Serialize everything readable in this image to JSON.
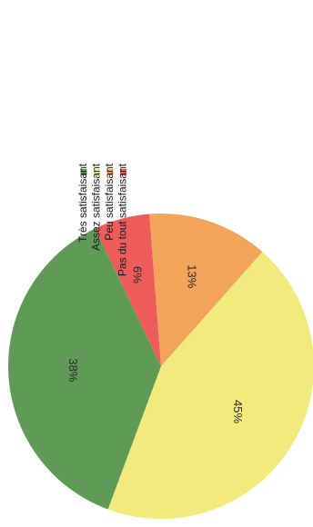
{
  "chart_data": {
    "type": "pie",
    "slices": [
      {
        "label": "Très satisfaisant",
        "value": 38,
        "display": "38%",
        "color": "#5f9a57"
      },
      {
        "label": "Assez satisfaisant",
        "value": 45,
        "display": "45%",
        "color": "#f2ea7c"
      },
      {
        "label": "Peu satisfaisant",
        "value": 13,
        "display": "13%",
        "color": "#f2a45a"
      },
      {
        "label": "Pas du tout satisfaisant",
        "value": 6,
        "display": "6%",
        "color": "#ee5b5b"
      }
    ],
    "legend_position": "right"
  }
}
